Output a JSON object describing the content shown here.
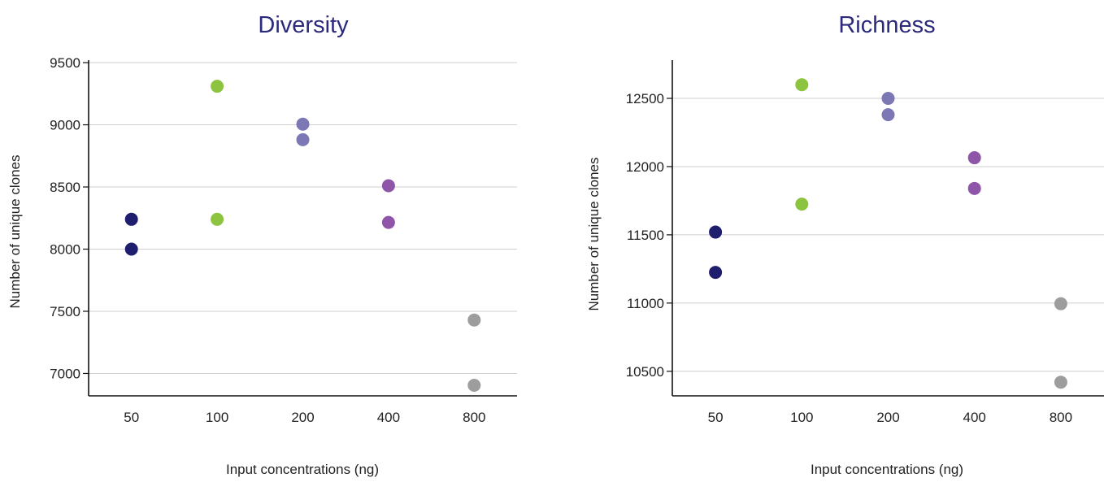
{
  "chart_data": [
    {
      "type": "scatter",
      "title": "Diversity",
      "xlabel": "Input concentrations (ng)",
      "ylabel": "Number of unique clones",
      "categories": [
        "50",
        "100",
        "200",
        "400",
        "800"
      ],
      "ylim": [
        6820,
        9520
      ],
      "yticks": [
        7000,
        7500,
        8000,
        8500,
        9000,
        9500
      ],
      "grid": true,
      "points": [
        {
          "x": "50",
          "y": 8240,
          "color": "#1f1d6e"
        },
        {
          "x": "50",
          "y": 8000,
          "color": "#1f1d6e"
        },
        {
          "x": "100",
          "y": 9310,
          "color": "#8cc43f"
        },
        {
          "x": "100",
          "y": 8240,
          "color": "#8cc43f"
        },
        {
          "x": "200",
          "y": 9005,
          "color": "#7b78b5"
        },
        {
          "x": "200",
          "y": 8880,
          "color": "#7b78b5"
        },
        {
          "x": "400",
          "y": 8510,
          "color": "#8e55a8"
        },
        {
          "x": "400",
          "y": 8215,
          "color": "#8e55a8"
        },
        {
          "x": "800",
          "y": 7430,
          "color": "#9d9d9d"
        },
        {
          "x": "800",
          "y": 6905,
          "color": "#9d9d9d"
        }
      ]
    },
    {
      "type": "scatter",
      "title": "Richness",
      "xlabel": "Input concentrations (ng)",
      "ylabel": "Number of unique clones",
      "categories": [
        "50",
        "100",
        "200",
        "400",
        "800"
      ],
      "ylim": [
        10320,
        12780
      ],
      "yticks": [
        10500,
        11000,
        11500,
        12000,
        12500
      ],
      "grid": true,
      "points": [
        {
          "x": "50",
          "y": 11520,
          "color": "#1f1d6e"
        },
        {
          "x": "50",
          "y": 11225,
          "color": "#1f1d6e"
        },
        {
          "x": "100",
          "y": 12600,
          "color": "#8cc43f"
        },
        {
          "x": "100",
          "y": 11725,
          "color": "#8cc43f"
        },
        {
          "x": "200",
          "y": 12500,
          "color": "#7b78b5"
        },
        {
          "x": "200",
          "y": 12380,
          "color": "#7b78b5"
        },
        {
          "x": "400",
          "y": 12065,
          "color": "#8e55a8"
        },
        {
          "x": "400",
          "y": 11840,
          "color": "#8e55a8"
        },
        {
          "x": "800",
          "y": 10995,
          "color": "#9d9d9d"
        },
        {
          "x": "800",
          "y": 10420,
          "color": "#9d9d9d"
        }
      ]
    }
  ]
}
